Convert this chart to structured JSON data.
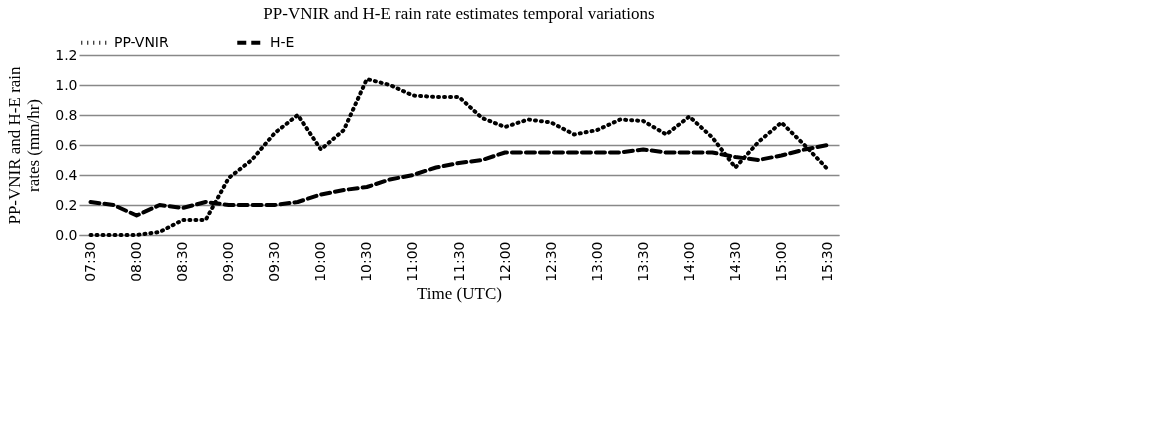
{
  "chart_data": {
    "type": "line",
    "title": "PP-VNIR and H-E rain rate estimates temporal variations",
    "xlabel": "Time (UTC)",
    "ylabel": "PP-VNIR and H-E  rain rates (mm/hr)",
    "categories": [
      "07:30",
      null,
      "08:00",
      null,
      "08:30",
      null,
      "09:00",
      null,
      "09:30",
      null,
      "10:00",
      null,
      "10:30",
      null,
      "11:00",
      null,
      "11:30",
      null,
      "12:00",
      null,
      "12:30",
      null,
      "13:00",
      null,
      "13:30",
      null,
      "14:00",
      null,
      "14:30",
      null,
      "15:00",
      null,
      "15:30"
    ],
    "series": [
      {
        "name": "PP-VNIR",
        "color": "#000000",
        "line_style": "dotted",
        "values": [
          0.0,
          0.0,
          0.0,
          0.02,
          0.1,
          0.1,
          0.38,
          0.5,
          0.68,
          0.8,
          0.57,
          0.7,
          1.04,
          1.0,
          0.93,
          0.92,
          0.92,
          0.78,
          0.72,
          0.77,
          0.75,
          0.67,
          0.7,
          0.77,
          0.76,
          0.67,
          0.79,
          0.65,
          0.45,
          0.62,
          0.75,
          0.6,
          0.44
        ]
      },
      {
        "name": "H-E",
        "color": "#000000",
        "line_style": "dashed",
        "values": [
          0.22,
          0.2,
          0.13,
          0.2,
          0.18,
          0.22,
          0.2,
          0.2,
          0.2,
          0.22,
          0.27,
          0.3,
          0.32,
          0.37,
          0.4,
          0.45,
          0.48,
          0.5,
          0.55,
          0.55,
          0.55,
          0.55,
          0.55,
          0.55,
          0.57,
          0.55,
          0.55,
          0.55,
          0.52,
          0.5,
          0.53,
          0.57,
          0.6
        ]
      }
    ],
    "ylim": [
      0,
      1.2
    ],
    "yticks": [
      {
        "value": 0,
        "label": "0.0"
      },
      {
        "value": 0.2,
        "label": "0.2"
      },
      {
        "value": 0.4,
        "label": "0.4"
      },
      {
        "value": 0.6,
        "label": "0.6"
      },
      {
        "value": 0.8,
        "label": "0.8"
      },
      {
        "value": 1.0,
        "label": "1.0"
      },
      {
        "value": 1.2,
        "label": "1.2"
      }
    ],
    "grid": "y",
    "legend": "top",
    "marker": "none"
  }
}
